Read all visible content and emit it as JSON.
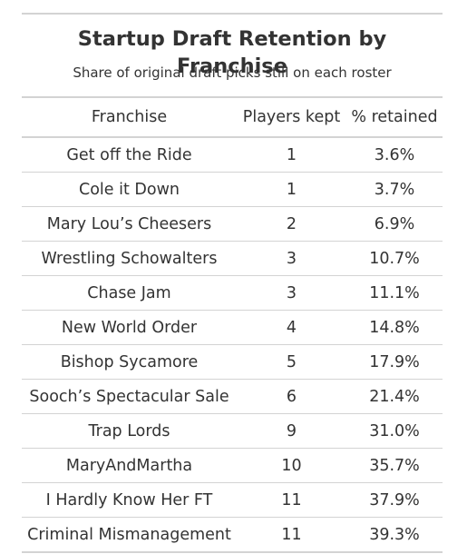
{
  "chart_data": {
    "type": "table",
    "title": "Startup Draft Retention by Franchise",
    "subtitle": "Share of original draft picks still on each roster",
    "columns": [
      "Franchise",
      "Players kept",
      "% retained"
    ],
    "rows": [
      {
        "franchise": "Get off the Ride",
        "kept": "1",
        "pct": "3.6%"
      },
      {
        "franchise": "Cole it Down",
        "kept": "1",
        "pct": "3.7%"
      },
      {
        "franchise": "Mary Lou’s Cheesers",
        "kept": "2",
        "pct": "6.9%"
      },
      {
        "franchise": "Wrestling Schowalters",
        "kept": "3",
        "pct": "10.7%"
      },
      {
        "franchise": "Chase Jam",
        "kept": "3",
        "pct": "11.1%"
      },
      {
        "franchise": "New World Order",
        "kept": "4",
        "pct": "14.8%"
      },
      {
        "franchise": "Bishop Sycamore",
        "kept": "5",
        "pct": "17.9%"
      },
      {
        "franchise": "Sooch’s Spectacular Sale",
        "kept": "6",
        "pct": "21.4%"
      },
      {
        "franchise": "Trap Lords",
        "kept": "9",
        "pct": "31.0%"
      },
      {
        "franchise": "MaryAndMartha",
        "kept": "10",
        "pct": "35.7%"
      },
      {
        "franchise": "I Hardly Know Her FT",
        "kept": "11",
        "pct": "37.9%"
      },
      {
        "franchise": "Criminal Mismanagement",
        "kept": "11",
        "pct": "39.3%"
      }
    ]
  },
  "colors": {
    "text": "#333333",
    "rule": "#d3d3d3",
    "background": "#ffffff"
  }
}
